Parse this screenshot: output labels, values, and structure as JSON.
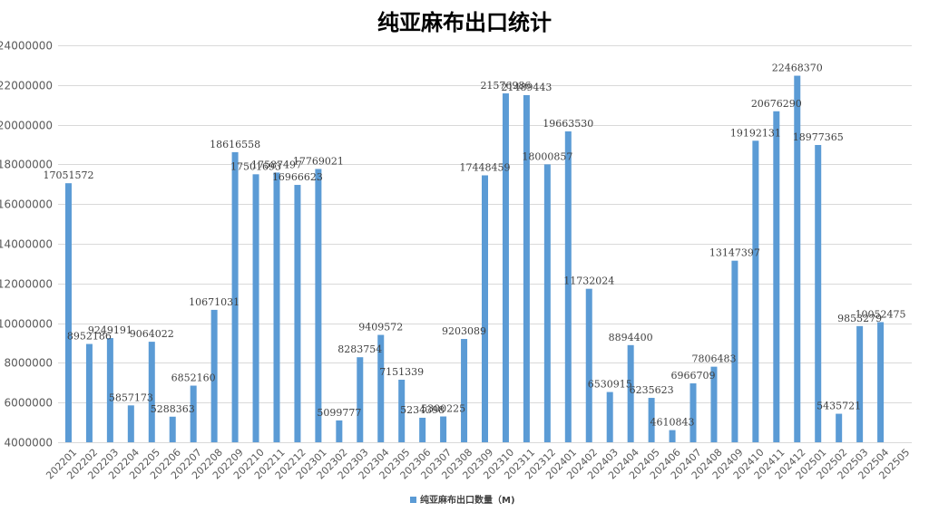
{
  "chart_data": {
    "type": "bar",
    "title": "纯亚麻布出口统计",
    "xlabel": "",
    "ylabel": "",
    "ylim": [
      4000000,
      24000000
    ],
    "ytick_step": 2000000,
    "grid": true,
    "legend_position": "bottom",
    "bar_color": "#5B9BD5",
    "categories": [
      "202201",
      "202202",
      "202203",
      "202204",
      "202205",
      "202206",
      "202207",
      "202208",
      "202209",
      "202210",
      "202211",
      "202212",
      "202301",
      "202302",
      "202303",
      "202304",
      "202305",
      "202306",
      "202307",
      "202308",
      "202309",
      "202310",
      "202311",
      "202312",
      "202401",
      "202402",
      "202403",
      "202404",
      "202405",
      "202406",
      "202407",
      "202408",
      "202409",
      "202410",
      "202411",
      "202412",
      "202501",
      "202502",
      "202503",
      "202504",
      "202505"
    ],
    "series": [
      {
        "name": "纯亚麻布出口数量（M)",
        "values": [
          17051572,
          8952186,
          9249191,
          5857173,
          9064022,
          5288363,
          6852160,
          10671031,
          18616558,
          17501693,
          17587497,
          16966623,
          17769021,
          5099777,
          8283754,
          9409572,
          7151339,
          5234398,
          5300225,
          9203089,
          17448459,
          21576986,
          21489443,
          18000857,
          19663530,
          11732024,
          6530915,
          8894400,
          6235623,
          4610843,
          6966709,
          7806483,
          13147397,
          19192131,
          20676290,
          22468370,
          18977365,
          5435721,
          9853279,
          10052475,
          null
        ],
        "data_labels": [
          "17051572",
          "8952186",
          "9249191",
          "5857173",
          "9064022",
          "5288363",
          "6852160",
          "10671031",
          "18616558",
          "17501693",
          "17587497",
          "16966623",
          "17769021",
          "5099777",
          "8283754",
          "9409572",
          "7151339",
          "5234398",
          "5300225",
          "9203089",
          "17448459",
          "21576986",
          "21489443",
          "18000857",
          "19663530",
          "11732024",
          "6530915",
          "8894400",
          "6235623",
          "4610843",
          "6966709",
          "7806483",
          "13147397",
          "19192131",
          "20676290",
          "22468370",
          "18977365",
          "5435721",
          "9853279",
          "10052475",
          ""
        ]
      }
    ]
  }
}
